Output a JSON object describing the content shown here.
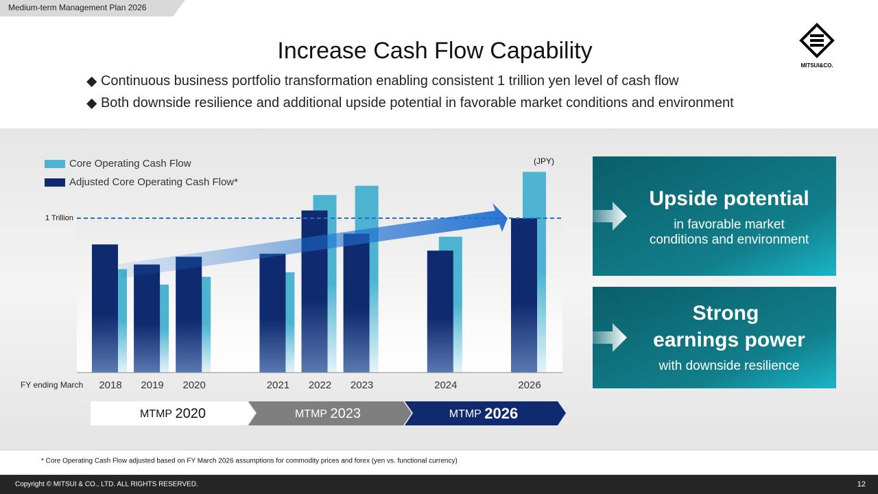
{
  "header_tag": "Medium-term Management Plan 2026",
  "title": "Increase Cash Flow Capability",
  "bullets": [
    "Continuous business portfolio transformation enabling consistent 1 trillion yen level of cash flow",
    "Both downside resilience and additional upside potential in favorable market conditions and environment"
  ],
  "logo": "MITSUI&CO.",
  "chart_data": {
    "type": "bar",
    "unit": "(JPY)",
    "x_label": "FY ending March",
    "categories": [
      "2018",
      "2019",
      "2020",
      "2021",
      "2022",
      "2023",
      "2024",
      "2026"
    ],
    "series": [
      {
        "name": "Core Operating Cash Flow",
        "color": "#4db3d1",
        "values": [
          0.67,
          0.57,
          0.62,
          0.65,
          1.15,
          1.21,
          0.88,
          1.3
        ]
      },
      {
        "name": "Adjusted Core Operating Cash Flow*",
        "color": "#0f2a6e",
        "values": [
          0.83,
          0.7,
          0.75,
          0.77,
          1.05,
          0.9,
          0.79,
          1.0
        ]
      }
    ],
    "ylim": [
      0,
      1.4
    ],
    "reference_line": {
      "value": 1,
      "label": "1 Trillion"
    }
  },
  "plans": [
    {
      "prefix": "MTMP",
      "year": "2020"
    },
    {
      "prefix": "MTMP",
      "year": "2023"
    },
    {
      "prefix": "MTMP",
      "year": "2026"
    }
  ],
  "panels": [
    {
      "heading": [
        "Upside potential"
      ],
      "text": [
        "in favorable market",
        "conditions and environment"
      ]
    },
    {
      "heading": [
        "Strong",
        "earnings power"
      ],
      "text": [
        "with downside resilience"
      ]
    }
  ],
  "footnote": "* Core Operating Cash Flow adjusted based on FY March 2026 assumptions for commodity prices and forex (yen vs. functional currency)",
  "copyright": "Copyright © MITSUI & CO., LTD. ALL RIGHTS RESERVED.",
  "page_number": "12"
}
